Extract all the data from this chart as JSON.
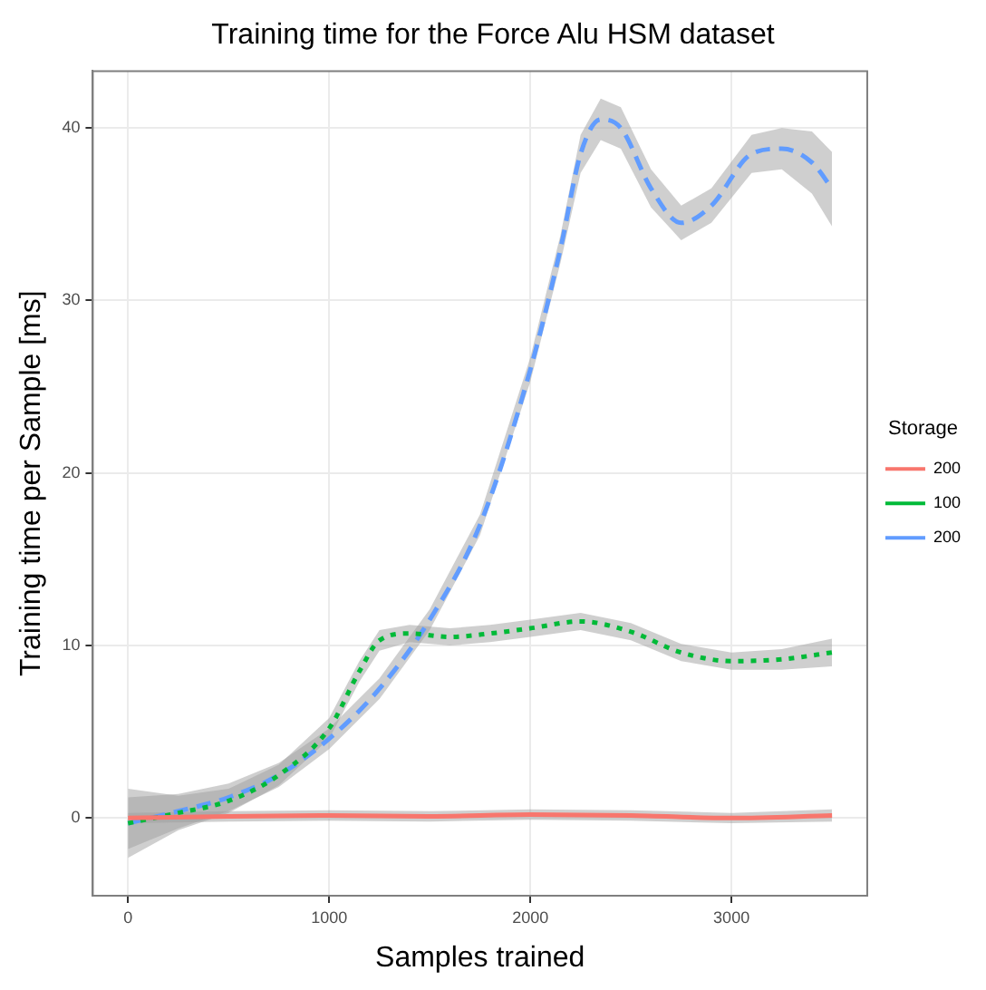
{
  "chart_data": {
    "type": "line",
    "title": "Training time for the Force Alu HSM dataset",
    "xlabel": "Samples trained",
    "ylabel": "Training time per Sample [ms]",
    "legend_title": "Storage",
    "xlim": [
      -175,
      3675
    ],
    "xticks": [
      0,
      1000,
      2000,
      3000
    ],
    "ylim": [
      -4.5,
      43.3
    ],
    "yticks": [
      0,
      10,
      20,
      30,
      40
    ],
    "grid": true,
    "legend": "right",
    "marker": "none",
    "series": [
      {
        "name": "200",
        "color": "#f8766d",
        "line_style": "solid",
        "x": [
          0,
          500,
          1000,
          1500,
          2000,
          2500,
          3000,
          3500
        ],
        "values": [
          0,
          0.1,
          0.15,
          0.1,
          0.2,
          0.15,
          0,
          0.15
        ],
        "lower": [
          -0.3,
          -0.2,
          -0.15,
          -0.2,
          -0.1,
          -0.15,
          -0.3,
          -0.2
        ],
        "upper": [
          0.3,
          0.4,
          0.45,
          0.4,
          0.5,
          0.45,
          0.3,
          0.5
        ]
      },
      {
        "name": "100",
        "color": "#00ba38",
        "line_style": "dotted",
        "x": [
          0,
          250,
          500,
          750,
          1000,
          1150,
          1250,
          1400,
          1600,
          1800,
          2000,
          2250,
          2500,
          2750,
          3000,
          3250,
          3500
        ],
        "values": [
          -0.3,
          0.3,
          1.0,
          2.5,
          5.2,
          8.5,
          10.3,
          10.7,
          10.5,
          10.7,
          11.0,
          11.4,
          10.8,
          9.6,
          9.1,
          9.2,
          9.6
        ],
        "lower": [
          -2.3,
          -0.7,
          0.3,
          1.9,
          4.6,
          7.9,
          9.7,
          10.2,
          10.0,
          10.2,
          10.5,
          10.9,
          10.3,
          9.1,
          8.6,
          8.6,
          8.8
        ],
        "upper": [
          1.7,
          1.3,
          1.7,
          3.1,
          5.8,
          9.1,
          10.9,
          11.2,
          11.0,
          11.2,
          11.5,
          11.9,
          11.3,
          10.1,
          9.6,
          9.8,
          10.4
        ]
      },
      {
        "name": "200",
        "color": "#619cff",
        "line_style": "dashed",
        "x": [
          0,
          250,
          500,
          750,
          1000,
          1250,
          1500,
          1750,
          2000,
          2150,
          2250,
          2350,
          2450,
          2600,
          2750,
          2900,
          3100,
          3250,
          3400,
          3500
        ],
        "values": [
          -0.3,
          0.4,
          1.2,
          2.5,
          4.6,
          7.5,
          11.5,
          17,
          26,
          33,
          38.5,
          40.5,
          40,
          36.5,
          34.5,
          35.5,
          38.5,
          38.8,
          38,
          36.5
        ],
        "lower": [
          -1.8,
          -0.6,
          0.4,
          1.8,
          4.0,
          6.9,
          10.9,
          16.4,
          25.3,
          32.2,
          37.4,
          39.3,
          38.8,
          35.4,
          33.5,
          34.5,
          37.4,
          37.6,
          36.2,
          34.3
        ],
        "upper": [
          1.2,
          1.4,
          2.0,
          3.2,
          5.2,
          8.1,
          12.1,
          17.6,
          26.7,
          33.8,
          39.6,
          41.7,
          41.2,
          37.6,
          35.5,
          36.5,
          39.6,
          40.0,
          39.8,
          38.6
        ]
      }
    ]
  }
}
